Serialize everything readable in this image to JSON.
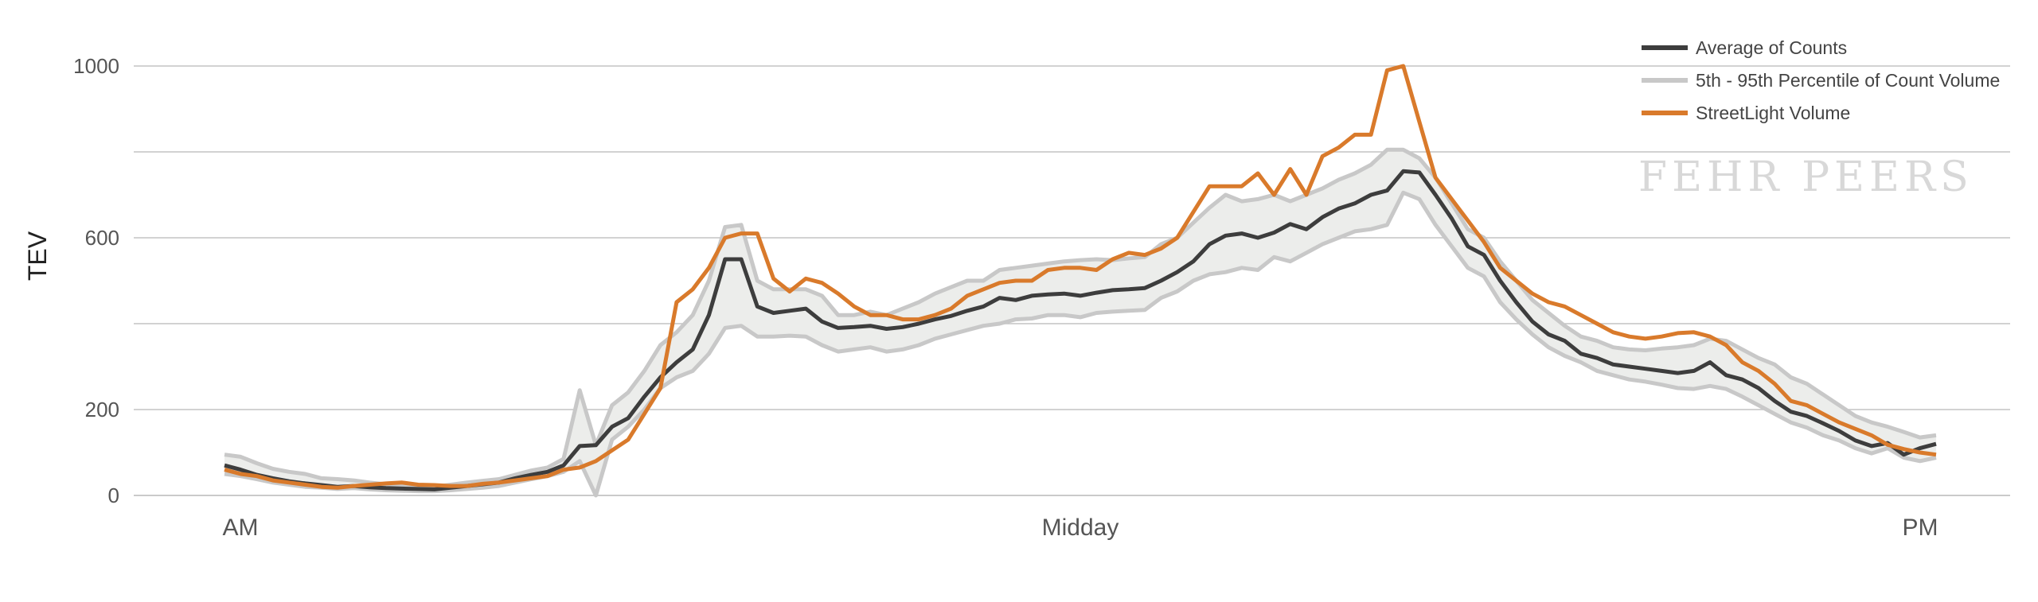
{
  "chart_data": {
    "type": "line",
    "ylabel": "TEV",
    "y_ticks": [
      0,
      200,
      600,
      1000
    ],
    "ylim": [
      0,
      1000
    ],
    "x_ticks": [
      "AM",
      "Midday",
      "PM"
    ],
    "legend_position": "top-right",
    "grid": true,
    "series": [
      {
        "name": "Average of Counts",
        "color": "#3d3d3d",
        "values": [
          70,
          60,
          48,
          40,
          33,
          28,
          24,
          20,
          22,
          19,
          17,
          16,
          15,
          14,
          18,
          22,
          26,
          30,
          40,
          48,
          55,
          70,
          115,
          117,
          160,
          180,
          230,
          275,
          310,
          340,
          420,
          550,
          550,
          440,
          425,
          430,
          435,
          405,
          390,
          392,
          395,
          388,
          392,
          400,
          410,
          418,
          430,
          440,
          460,
          455,
          465,
          468,
          470,
          465,
          472,
          478,
          480,
          483,
          500,
          520,
          545,
          585,
          605,
          610,
          600,
          612,
          632,
          620,
          648,
          668,
          680,
          700,
          710,
          755,
          752,
          700,
          645,
          580,
          560,
          500,
          450,
          405,
          375,
          360,
          330,
          320,
          305,
          300,
          295,
          290,
          285,
          290,
          310,
          280,
          270,
          250,
          220,
          195,
          185,
          168,
          150,
          128,
          115,
          122,
          95,
          110,
          120
        ],
        "band_lower": [
          50,
          45,
          38,
          30,
          25,
          20,
          18,
          15,
          17,
          14,
          12,
          11,
          10,
          10,
          12,
          15,
          18,
          22,
          30,
          38,
          45,
          55,
          80,
          0,
          130,
          160,
          200,
          250,
          275,
          290,
          330,
          390,
          395,
          370,
          370,
          372,
          370,
          350,
          335,
          340,
          345,
          335,
          340,
          350,
          365,
          375,
          385,
          395,
          400,
          410,
          412,
          420,
          420,
          415,
          425,
          428,
          430,
          432,
          460,
          475,
          500,
          515,
          520,
          530,
          525,
          555,
          545,
          565,
          585,
          600,
          615,
          620,
          630,
          705,
          690,
          630,
          580,
          530,
          510,
          450,
          410,
          375,
          345,
          325,
          310,
          290,
          280,
          270,
          265,
          258,
          250,
          248,
          255,
          248,
          230,
          210,
          190,
          170,
          158,
          140,
          128,
          110,
          98,
          110,
          88,
          80,
          88
        ],
        "band_upper": [
          95,
          90,
          75,
          62,
          55,
          50,
          40,
          38,
          35,
          30,
          26,
          24,
          22,
          20,
          25,
          30,
          34,
          38,
          48,
          58,
          65,
          85,
          245,
          117,
          210,
          240,
          290,
          350,
          380,
          420,
          500,
          625,
          630,
          500,
          480,
          480,
          480,
          465,
          420,
          420,
          428,
          420,
          435,
          450,
          470,
          485,
          500,
          500,
          525,
          530,
          535,
          540,
          545,
          548,
          550,
          548,
          552,
          555,
          585,
          600,
          635,
          670,
          700,
          685,
          690,
          700,
          685,
          700,
          715,
          735,
          750,
          770,
          805,
          805,
          785,
          740,
          680,
          620,
          600,
          545,
          500,
          455,
          425,
          395,
          370,
          360,
          345,
          340,
          338,
          342,
          345,
          350,
          365,
          360,
          340,
          320,
          305,
          275,
          260,
          235,
          210,
          185,
          170,
          160,
          148,
          135,
          140
        ]
      },
      {
        "name": "5th - 95th Percentile of Count Volume",
        "color": "#c8c8c8"
      },
      {
        "name": "StreetLight Volume",
        "color": "#d97a2b",
        "values": [
          60,
          50,
          45,
          35,
          30,
          25,
          20,
          18,
          22,
          25,
          28,
          30,
          25,
          24,
          22,
          22,
          27,
          30,
          35,
          40,
          45,
          60,
          65,
          80,
          105,
          130,
          190,
          250,
          450,
          480,
          530,
          600,
          610,
          610,
          505,
          475,
          505,
          495,
          470,
          440,
          420,
          420,
          410,
          410,
          420,
          435,
          465,
          480,
          495,
          500,
          500,
          525,
          530,
          530,
          525,
          550,
          565,
          560,
          575,
          600,
          660,
          720,
          720,
          720,
          750,
          700,
          760,
          700,
          790,
          810,
          840,
          840,
          990,
          1000,
          870,
          740,
          690,
          640,
          590,
          530,
          500,
          470,
          450,
          440,
          420,
          400,
          380,
          370,
          365,
          370,
          378,
          380,
          370,
          350,
          310,
          290,
          260,
          220,
          210,
          190,
          170,
          155,
          140,
          118,
          108,
          100,
          95
        ]
      }
    ]
  },
  "watermark": "FEHR PEERS"
}
